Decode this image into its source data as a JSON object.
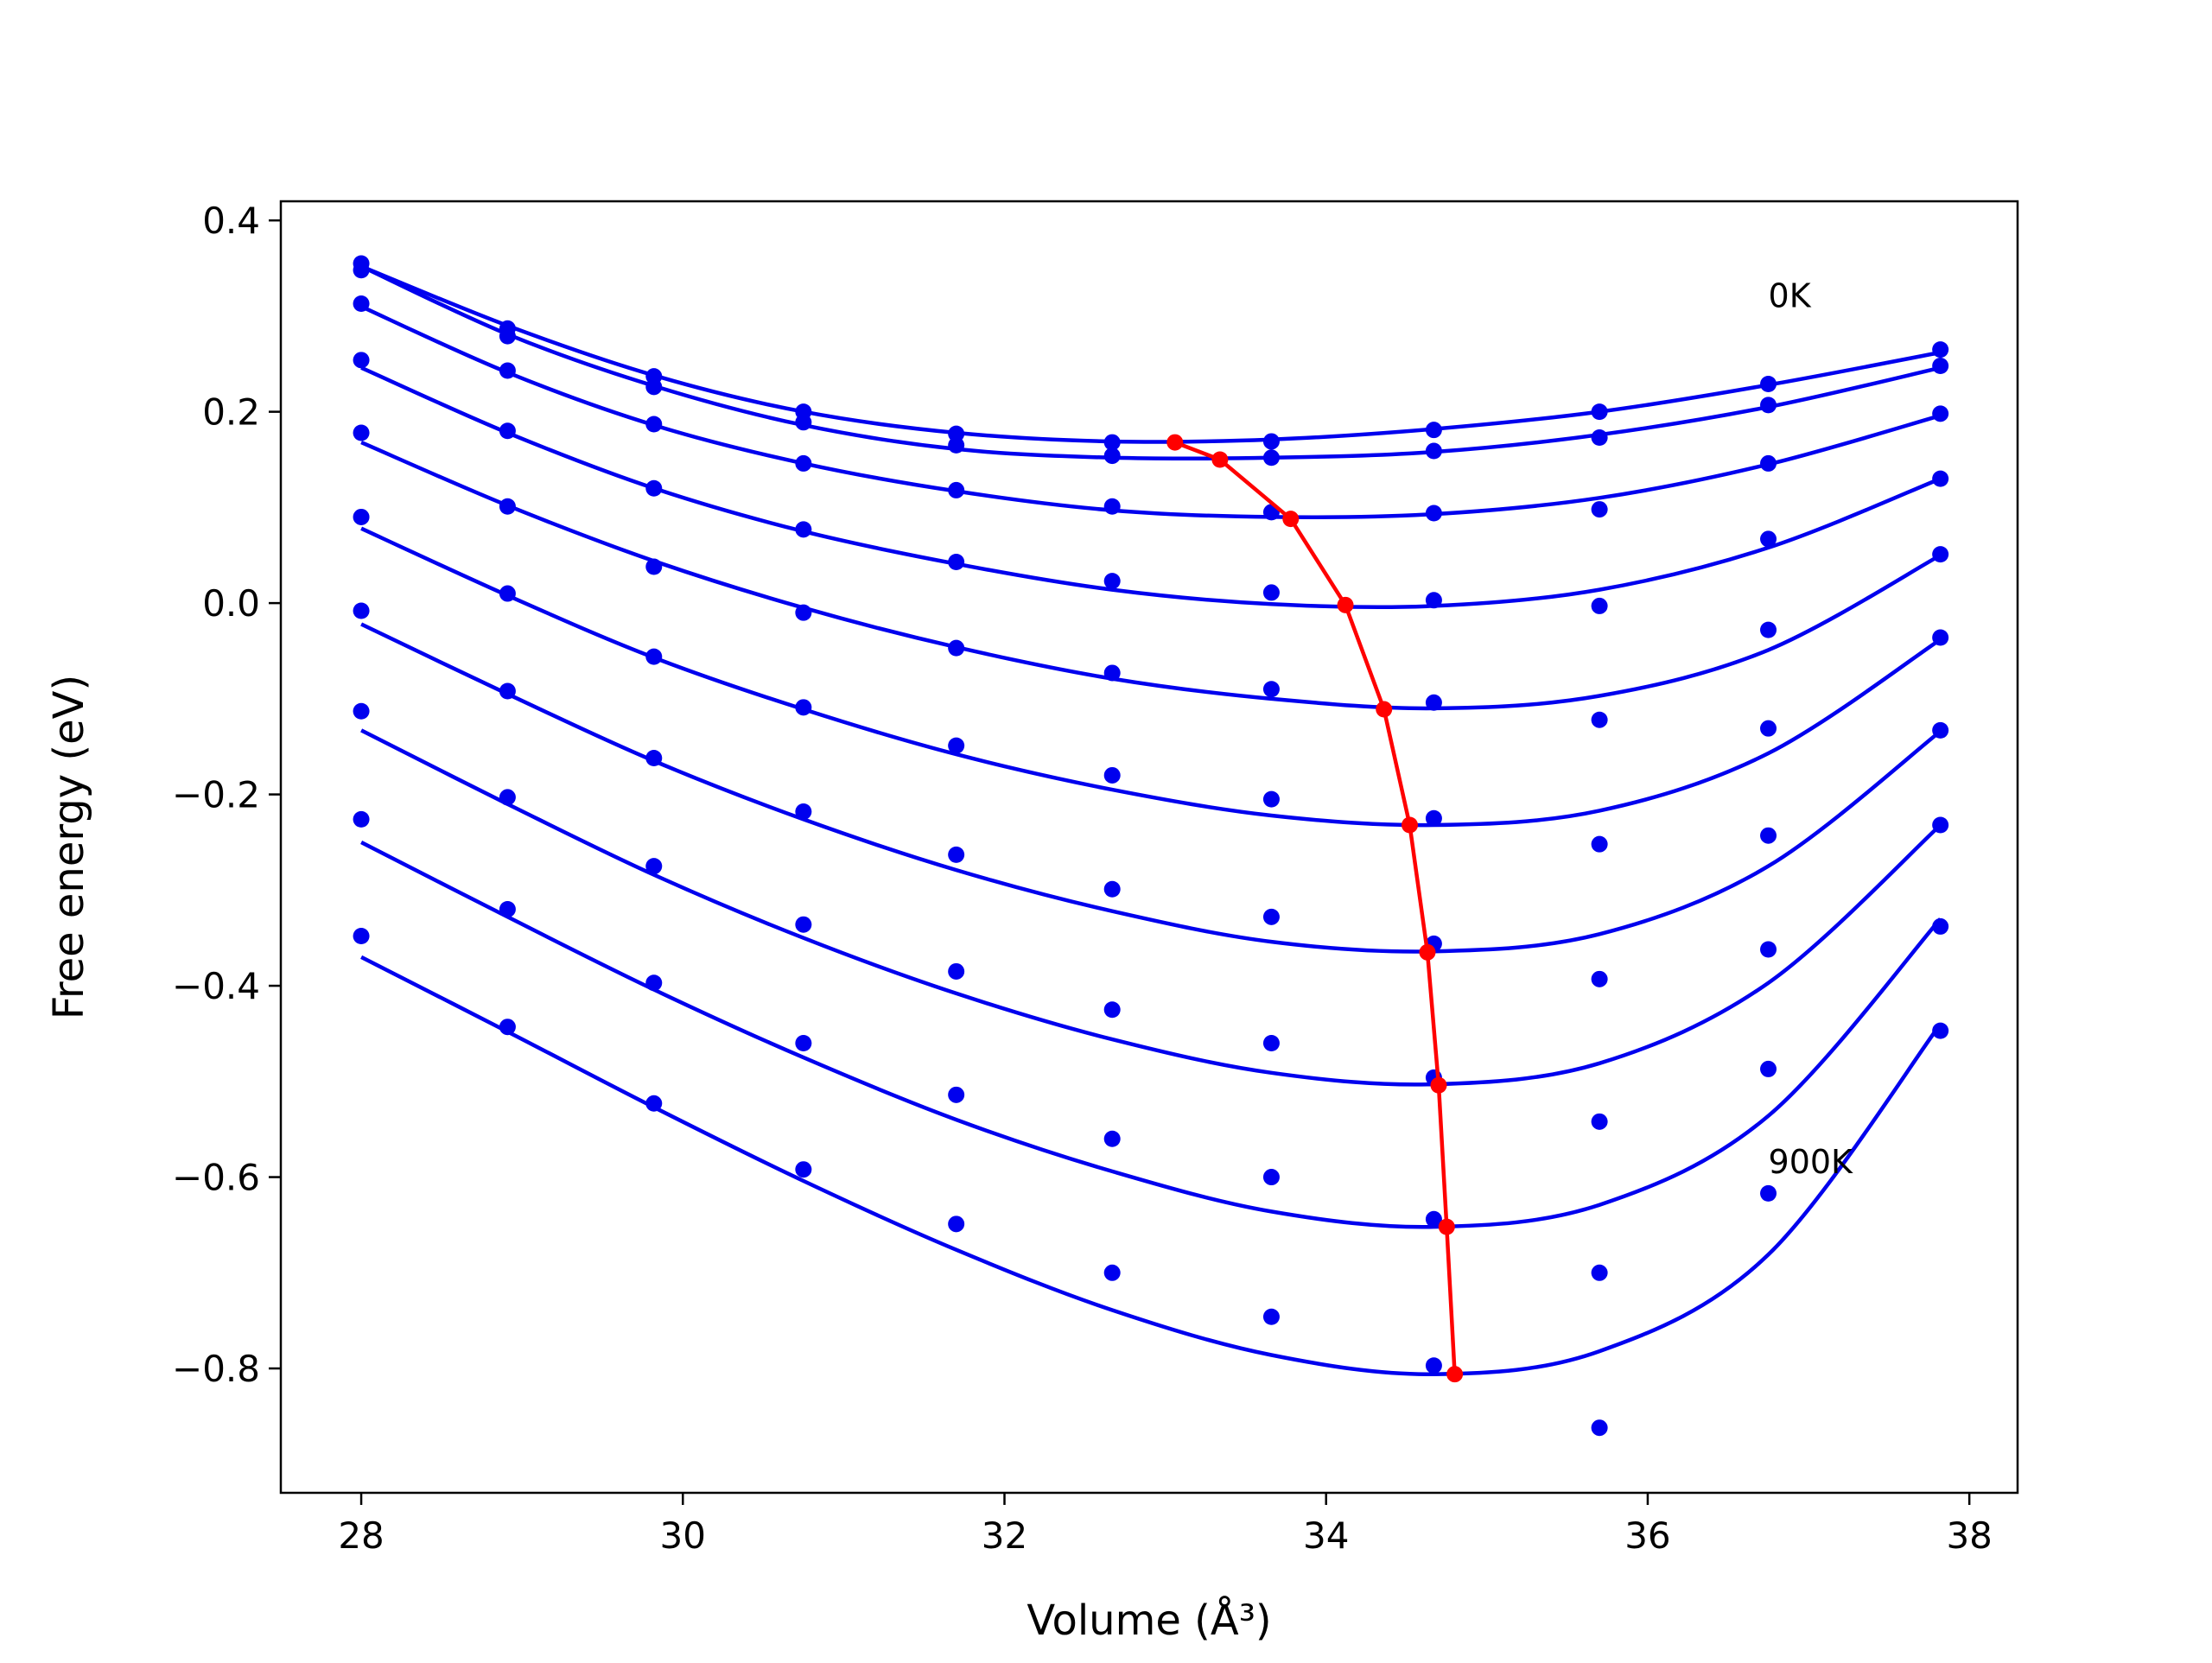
{
  "chart_data": {
    "type": "scatter",
    "xlabel": "Volume (Å³)",
    "ylabel": "Free energy (eV)",
    "xlim": [
      27.5,
      38.3
    ],
    "ylim": [
      -0.93,
      0.42
    ],
    "x_ticks": [
      28,
      30,
      32,
      34,
      36,
      38
    ],
    "x_tick_labels": [
      "28",
      "30",
      "32",
      "34",
      "36",
      "38"
    ],
    "y_ticks": [
      0.4,
      0.2,
      0.0,
      -0.2,
      -0.4,
      -0.6,
      -0.8
    ],
    "y_tick_labels": [
      "0.4",
      "0.2",
      "0.0",
      "−0.2",
      "−0.4",
      "−0.6",
      "−0.8"
    ],
    "grid": false,
    "legend": "none",
    "colors": {
      "data": "#0000ee",
      "minimum": "#ff0000",
      "axes": "#000000"
    },
    "annotations": [
      {
        "text": "0K",
        "x": 36.75,
        "y": 0.32
      },
      {
        "text": "900K",
        "x": 36.75,
        "y": -0.585
      }
    ],
    "volumes": [
      28.0,
      28.91,
      29.82,
      30.75,
      31.7,
      32.67,
      33.66,
      34.67,
      35.7,
      36.75,
      37.82
    ],
    "series": [
      {
        "points": [
          0.355,
          0.287,
          0.237,
          0.2,
          0.177,
          0.168,
          0.169,
          0.181,
          0.2,
          0.229,
          0.265
        ],
        "fit": [
          0.352,
          0.29,
          0.238,
          0.2,
          0.178,
          0.169,
          0.171,
          0.182,
          0.2,
          0.228,
          0.262
        ]
      },
      {
        "points": [
          0.348,
          0.279,
          0.226,
          0.189,
          0.165,
          0.154,
          0.152,
          0.159,
          0.173,
          0.207,
          0.248
        ],
        "fit": [
          0.352,
          0.281,
          0.227,
          0.186,
          0.161,
          0.152,
          0.152,
          0.158,
          0.176,
          0.205,
          0.246
        ]
      },
      {
        "points": [
          0.313,
          0.243,
          0.187,
          0.146,
          0.118,
          0.101,
          0.095,
          0.094,
          0.098,
          0.146,
          0.198
        ],
        "fit": [
          0.31,
          0.241,
          0.186,
          0.146,
          0.117,
          0.097,
          0.09,
          0.093,
          0.11,
          0.145,
          0.196
        ]
      },
      {
        "points": [
          0.254,
          0.18,
          0.12,
          0.077,
          0.043,
          0.023,
          0.011,
          0.003,
          -0.003,
          0.067,
          0.13
        ],
        "fit": [
          0.246,
          0.178,
          0.12,
          0.075,
          0.041,
          0.014,
          -0.001,
          -0.003,
          0.014,
          0.058,
          0.13
        ]
      },
      {
        "points": [
          0.178,
          0.101,
          0.038,
          -0.01,
          -0.047,
          -0.073,
          -0.09,
          -0.104,
          -0.122,
          -0.028,
          0.051
        ],
        "fit": [
          0.168,
          0.102,
          0.044,
          -0.005,
          -0.046,
          -0.079,
          -0.1,
          -0.11,
          -0.097,
          -0.049,
          0.05
        ]
      },
      {
        "points": [
          0.09,
          0.01,
          -0.056,
          -0.109,
          -0.149,
          -0.18,
          -0.205,
          -0.225,
          -0.252,
          -0.131,
          -0.036
        ]
      },
      {
        "points": [
          -0.008,
          -0.092,
          -0.162,
          -0.218,
          -0.263,
          -0.299,
          -0.328,
          -0.356,
          -0.393,
          -0.243,
          -0.133
        ]
      },
      {
        "points": [
          -0.113,
          -0.203,
          -0.275,
          -0.336,
          -0.385,
          -0.425,
          -0.46,
          -0.496,
          -0.542,
          -0.362,
          -0.232
        ]
      },
      {
        "points": [
          -0.226,
          -0.32,
          -0.397,
          -0.46,
          -0.514,
          -0.56,
          -0.6,
          -0.644,
          -0.7,
          -0.487,
          -0.338
        ]
      },
      {
        "points": [
          -0.348,
          -0.443,
          -0.523,
          -0.592,
          -0.649,
          -0.7,
          -0.746,
          -0.797,
          -0.862,
          -0.617,
          -0.447
        ]
      }
    ],
    "fit_curves": [
      {
        "values": [
          0.078,
          0.008,
          -0.057,
          -0.111,
          -0.158,
          -0.195,
          -0.222,
          -0.232,
          -0.217,
          -0.157,
          -0.038
        ]
      },
      {
        "values": [
          -0.022,
          -0.095,
          -0.165,
          -0.226,
          -0.279,
          -0.322,
          -0.354,
          -0.364,
          -0.346,
          -0.275,
          -0.134
        ]
      },
      {
        "values": [
          -0.133,
          -0.21,
          -0.284,
          -0.35,
          -0.408,
          -0.456,
          -0.491,
          -0.503,
          -0.481,
          -0.397,
          -0.232
        ]
      },
      {
        "values": [
          -0.25,
          -0.328,
          -0.404,
          -0.475,
          -0.54,
          -0.594,
          -0.636,
          -0.652,
          -0.629,
          -0.536,
          -0.33
        ]
      },
      {
        "values": [
          -0.37,
          -0.448,
          -0.527,
          -0.604,
          -0.676,
          -0.739,
          -0.786,
          -0.806,
          -0.782,
          -0.681,
          -0.44
        ]
      }
    ],
    "minimum_line": {
      "x": [
        33.06,
        33.34,
        33.78,
        34.12,
        34.36,
        34.52,
        34.63,
        34.7,
        34.75,
        34.8
      ],
      "y": [
        0.168,
        0.15,
        0.088,
        -0.002,
        -0.111,
        -0.232,
        -0.365,
        -0.504,
        -0.652,
        -0.806
      ]
    }
  }
}
